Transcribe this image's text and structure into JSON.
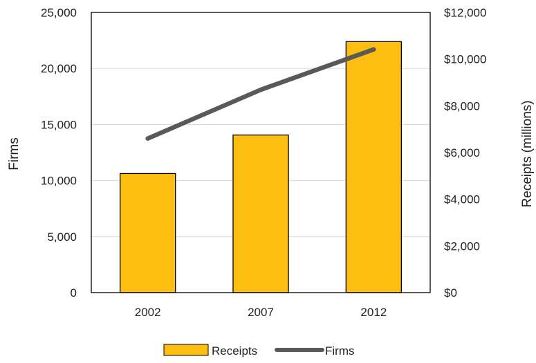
{
  "chart_data": {
    "type": "bar",
    "categories": [
      "2002",
      "2007",
      "2012"
    ],
    "series": [
      {
        "name": "Receipts",
        "kind": "bar",
        "axis": "right",
        "values": [
          5100,
          6750,
          10750
        ],
        "color": "#FDBE12",
        "edge_color": "#000000"
      },
      {
        "name": "Firms",
        "kind": "line",
        "axis": "left",
        "values": [
          13750,
          18100,
          21700
        ],
        "color": "#595959"
      }
    ],
    "y_left": {
      "label": "Firms",
      "range": [
        0,
        25000
      ],
      "ticks": [
        0,
        5000,
        10000,
        15000,
        20000,
        25000
      ],
      "tick_labels": [
        "0",
        "5,000",
        "10,000",
        "15,000",
        "20,000",
        "25,000"
      ]
    },
    "y_right": {
      "label": "Receipts (millions)",
      "range": [
        0,
        12000
      ],
      "ticks": [
        0,
        2000,
        4000,
        6000,
        8000,
        10000,
        12000
      ],
      "tick_labels": [
        "$0",
        "$2,000",
        "$4,000",
        "$6,000",
        "$8,000",
        "$10,000",
        "$12,000"
      ]
    },
    "grid": true,
    "legend": {
      "position": "bottom",
      "entries": [
        "Receipts",
        "Firms"
      ]
    }
  }
}
